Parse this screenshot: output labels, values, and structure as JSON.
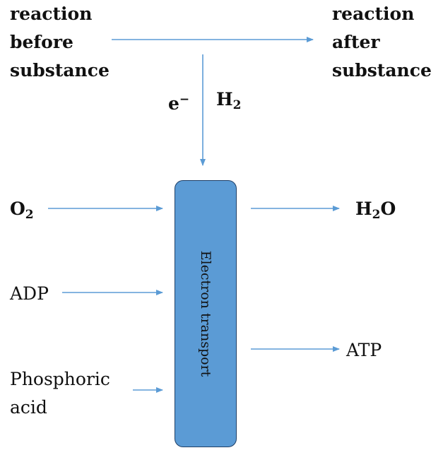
{
  "reactants": {
    "before_lines": [
      "reaction",
      "before",
      "substance"
    ],
    "after_lines": [
      "reaction",
      "after",
      "substance"
    ]
  },
  "transfer": {
    "electron_base": "e",
    "electron_sup": "−",
    "hydrogen_base": "H",
    "hydrogen_sub": "2"
  },
  "inputs": {
    "oxygen_base": "O",
    "oxygen_sub": "2",
    "adp": "ADP",
    "phosphoric_lines": [
      "Phosphoric",
      "acid"
    ]
  },
  "outputs": {
    "water_base": "H",
    "water_sub": "2",
    "water_tail": "O",
    "atp": "ATP"
  },
  "process": {
    "label": "Electron transport"
  },
  "colors": {
    "arrow": "#5b9bd5",
    "box_fill": "#5b9bd5",
    "box_border": "#1f3f66",
    "text": "#111111"
  }
}
